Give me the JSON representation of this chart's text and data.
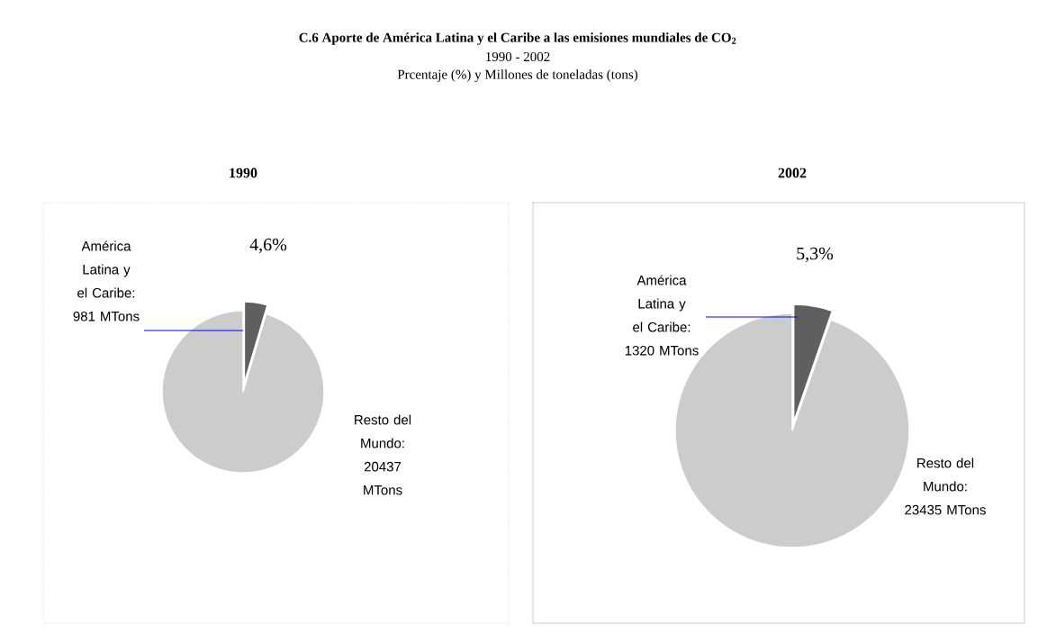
{
  "chart_data": [
    {
      "type": "pie",
      "title": "1990",
      "annotations": [
        "**C.6 Aporte de América Latina y el Caribe a las emisiones mundiales de CO$_{2}$**",
        "1990 - 2002",
        "Prcentaje (%) y  Millones de toneladas (tons)",
        "4,6%"
      ],
      "categories": [
        "América Latina y el Caribe: 981 MTons",
        "Resto del Mundo: 20437 MTons"
      ],
      "values": [
        981,
        20437
      ],
      "colors": [
        "#5f5f5f",
        "#cccccc"
      ]
    },
    {
      "type": "pie",
      "title": "2002",
      "annotations": [
        "5,3%"
      ],
      "categories": [
        "América Latina y el Caribe: 1320 MTons",
        "Resto del Mundo: 23435 MTons"
      ],
      "values": [
        1320,
        23435
      ],
      "colors": [
        "#5f5f5f",
        "#cccccc"
      ]
    }
  ]
}
